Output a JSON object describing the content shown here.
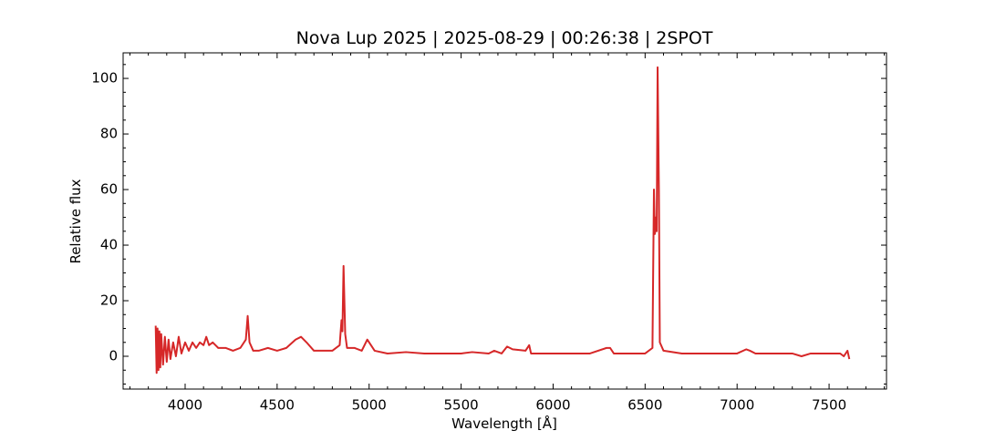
{
  "chart_data": {
    "type": "line",
    "title": "Nova Lup 2025 | 2025-08-29 | 00:26:38 | 2SPOT",
    "x_label": "Wavelength [Å]",
    "y_label": "Relative flux",
    "color": "#d62728",
    "x": [
      3840,
      3845,
      3850,
      3855,
      3860,
      3865,
      3870,
      3880,
      3890,
      3900,
      3910,
      3920,
      3935,
      3950,
      3965,
      3980,
      4000,
      4020,
      4040,
      4060,
      4080,
      4100,
      4115,
      4130,
      4150,
      4180,
      4220,
      4260,
      4300,
      4330,
      4340,
      4350,
      4370,
      4400,
      4450,
      4500,
      4550,
      4600,
      4630,
      4660,
      4700,
      4750,
      4800,
      4840,
      4850,
      4855,
      4861,
      4870,
      4880,
      4920,
      4960,
      4990,
      5010,
      5030,
      5100,
      5200,
      5300,
      5400,
      5500,
      5560,
      5650,
      5680,
      5720,
      5750,
      5780,
      5850,
      5870,
      5880,
      5900,
      6000,
      6100,
      6200,
      6290,
      6310,
      6330,
      6400,
      6500,
      6540,
      6548,
      6553,
      6560,
      6563,
      6568,
      6575,
      6580,
      6600,
      6700,
      6800,
      6900,
      7000,
      7050,
      7070,
      7100,
      7200,
      7300,
      7350,
      7400,
      7500,
      7560,
      7580,
      7600,
      7610
    ],
    "values": [
      11,
      -6,
      10,
      -5,
      9,
      -4,
      8,
      -3,
      7,
      -2,
      6,
      -1,
      5,
      0,
      7,
      1,
      5,
      2,
      5,
      3,
      5,
      4,
      7,
      4,
      5,
      3,
      3,
      2,
      3,
      6,
      14.5,
      5,
      2,
      2,
      3,
      2,
      3,
      6,
      7,
      5,
      2,
      2,
      2,
      4,
      13,
      9,
      32.5,
      8,
      3,
      3,
      2,
      6,
      4,
      2,
      1,
      1.5,
      1,
      1,
      1,
      1.5,
      1,
      2,
      1,
      3.5,
      2.5,
      2,
      4,
      1,
      1,
      1,
      1,
      1,
      3,
      3,
      1,
      1,
      1,
      3,
      60,
      44,
      50,
      45,
      104,
      60,
      5,
      2,
      1,
      1,
      1,
      1,
      2.5,
      2,
      1,
      1,
      1,
      0,
      1,
      1,
      1,
      0,
      2,
      -1
    ],
    "xlim": [
      3663,
      7812
    ],
    "ylim": [
      -11.8,
      109.2
    ],
    "xticks": [
      4000,
      4500,
      5000,
      5500,
      6000,
      6500,
      7000,
      7500
    ],
    "yticks": [
      0,
      20,
      40,
      60,
      80,
      100
    ],
    "xminorticks": [
      3700,
      3800,
      3900,
      4100,
      4200,
      4300,
      4400,
      4600,
      4700,
      4800,
      4900,
      5100,
      5200,
      5300,
      5400,
      5600,
      5700,
      5800,
      5900,
      6100,
      6200,
      6300,
      6400,
      6600,
      6700,
      6800,
      6900,
      7100,
      7200,
      7300,
      7400,
      7600,
      7700,
      7800
    ],
    "yminorticks": [
      -10,
      -5,
      5,
      10,
      15,
      25,
      30,
      35,
      45,
      50,
      55,
      65,
      70,
      75,
      85,
      90,
      95,
      105
    ]
  }
}
